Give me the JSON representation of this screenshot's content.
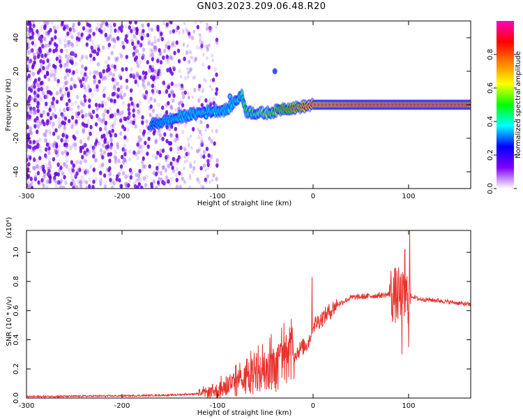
{
  "title": "GN03.2023.209.06.48.R20",
  "chart_data": [
    {
      "type": "heatmap",
      "xlabel": "Height of straight line (km)",
      "ylabel": "Frequency (Hz)",
      "xlim": [
        -300,
        165
      ],
      "ylim": [
        -50,
        50
      ],
      "xticks": [
        -300,
        -200,
        -100,
        0,
        100
      ],
      "yticks": [
        -40,
        -20,
        0,
        20,
        40
      ],
      "colorbar": {
        "label": "Normalized spectral amplitude",
        "range": [
          0.0,
          1.0
        ],
        "ticks": [
          0.0,
          0.2,
          0.4,
          0.6,
          0.8
        ],
        "colors": [
          "#ffffff",
          "#8000ff",
          "#0000ff",
          "#00ffff",
          "#00ff00",
          "#ffff00",
          "#ff8000",
          "#ff0000",
          "#ff00c0"
        ]
      },
      "ridge": {
        "x": [
          -170,
          -150,
          -130,
          -110,
          -90,
          -80,
          -75,
          -70,
          -60,
          -50,
          -40,
          -30,
          -20,
          -10,
          0,
          50,
          100,
          165
        ],
        "y": [
          -12,
          -9,
          -6,
          -4,
          -3,
          3,
          6,
          -4,
          -5,
          -5,
          -4,
          -2,
          -2,
          -1,
          0,
          0,
          0,
          0
        ],
        "amplitude": [
          0.25,
          0.35,
          0.35,
          0.4,
          0.35,
          0.4,
          0.45,
          0.55,
          0.6,
          0.65,
          0.7,
          0.75,
          0.8,
          0.85,
          0.9,
          0.95,
          0.95,
          0.95
        ]
      },
      "blobs": [
        {
          "x": -87,
          "y": 5,
          "amplitude": 0.35
        },
        {
          "x": -40,
          "y": 20,
          "amplitude": 0.3
        },
        {
          "x": -112,
          "y": -7,
          "amplitude": 0.35
        }
      ]
    },
    {
      "type": "line",
      "xlabel": "Height of straight line (km)",
      "ylabel": "SNR (10 * v/v)",
      "y_multiplier": "(x10⁴)",
      "xlim": [
        -300,
        165
      ],
      "ylim": [
        0.0,
        1.15
      ],
      "xticks": [
        -300,
        -200,
        -100,
        0,
        100
      ],
      "yticks": [
        0.0,
        0.2,
        0.4,
        0.6,
        0.8,
        1.0
      ],
      "series": [
        {
          "color": "#e8332e",
          "x": [
            -300,
            -200,
            -150,
            -120,
            -100,
            -80,
            -60,
            -40,
            -20,
            -5,
            0,
            10,
            25,
            40,
            60,
            80,
            90,
            95,
            100,
            110,
            130,
            165
          ],
          "y": [
            0.01,
            0.015,
            0.02,
            0.03,
            0.05,
            0.1,
            0.15,
            0.2,
            0.3,
            0.38,
            0.5,
            0.55,
            0.64,
            0.69,
            0.7,
            0.71,
            0.7,
            0.66,
            0.71,
            0.68,
            0.67,
            0.64
          ]
        }
      ],
      "spikes": [
        {
          "x": -1,
          "y": 0.83
        },
        {
          "x": 96,
          "y": 1.02
        },
        {
          "x": 101,
          "y": 1.15
        },
        {
          "x": 93,
          "y": 0.3
        },
        {
          "x": 100,
          "y": 0.35
        },
        {
          "x": 80,
          "y": 0.78
        }
      ]
    }
  ]
}
